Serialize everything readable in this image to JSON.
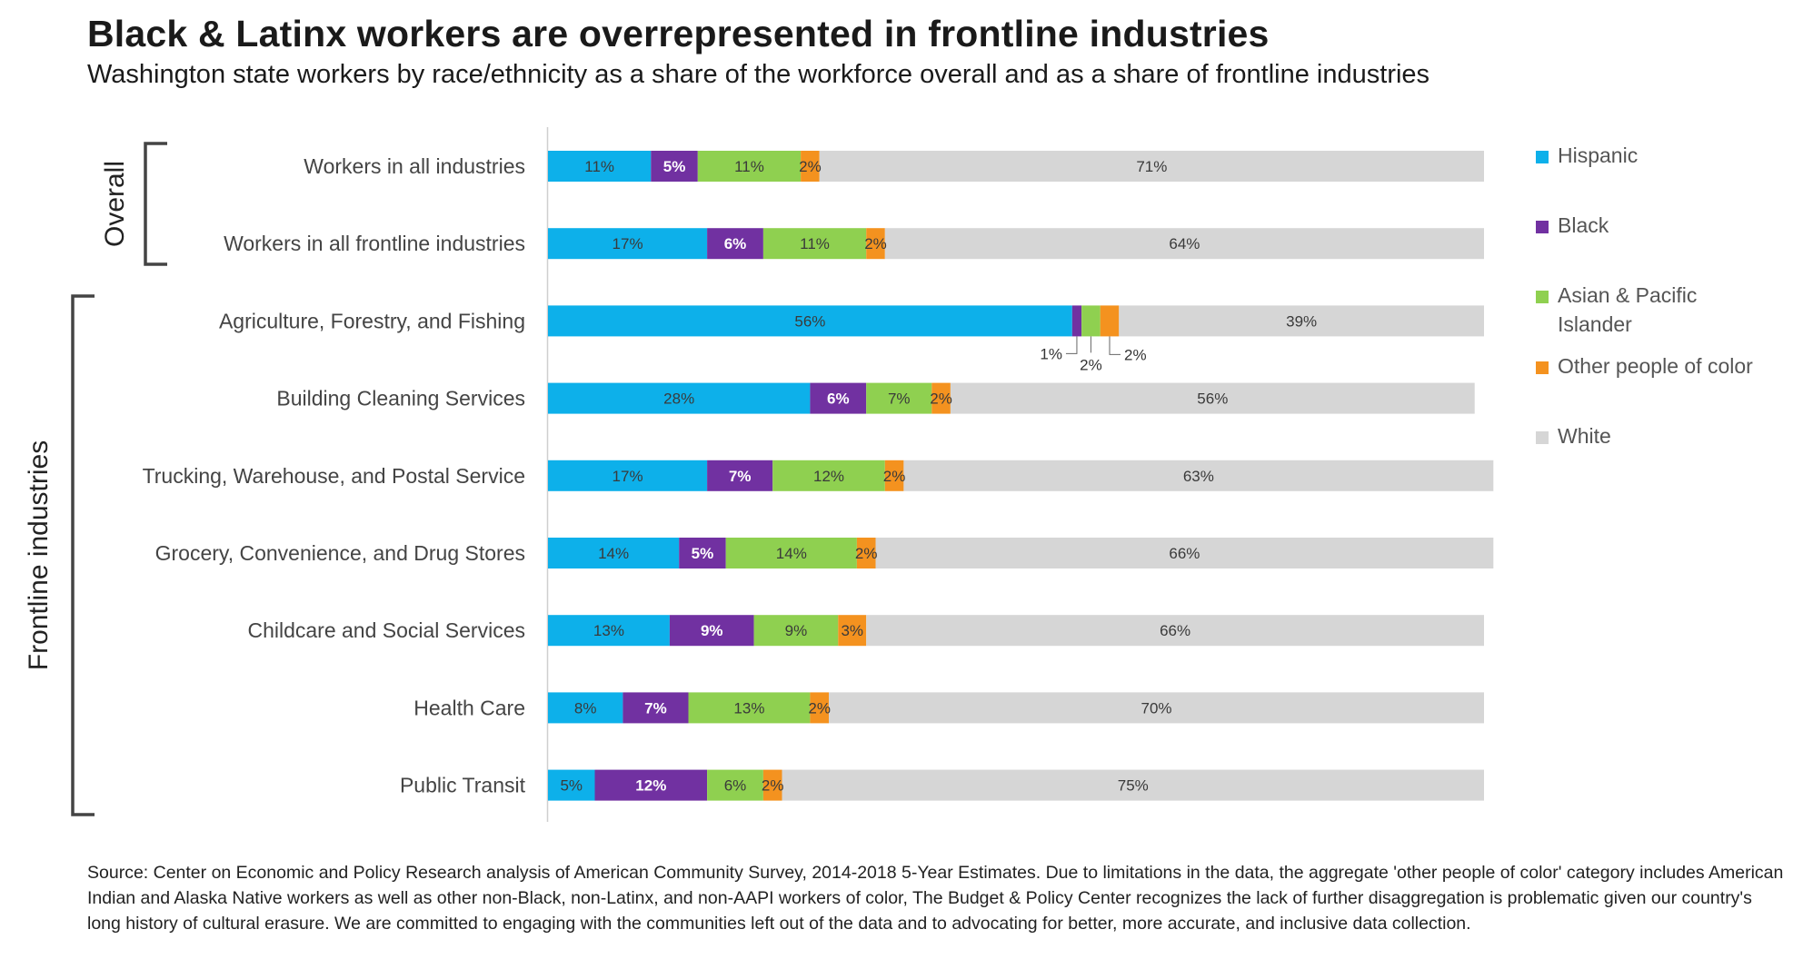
{
  "title": "Black & Latinx workers are overrepresented in frontline industries",
  "subtitle": "Washington state workers by race/ethnicity as a share of the workforce overall and as a share of frontline industries",
  "source": "Source: Center on Economic and Policy Research analysis of American Community Survey, 2014-2018 5-Year Estimates. Due to limitations in the data, the aggregate 'other people of color' category includes American Indian and Alaska Native workers as well as other non-Black, non-Latinx, and non-AAPI workers of color, The Budget & Policy Center recognizes the lack of further disaggregation is problematic given our country's long history of cultural erasure. We are committed to engaging with the communities left out of the data and to advocating for better, more accurate, and inclusive data collection.",
  "groups": [
    {
      "label": "Overall",
      "rows": [
        0,
        1
      ]
    },
    {
      "label": "Frontline industries",
      "rows": [
        2,
        3,
        4,
        5,
        6,
        7,
        8
      ]
    }
  ],
  "colors": {
    "Hispanic": "#0db0ea",
    "Black": "#7131a1",
    "Asian & Pacific Islander": "#8fd050",
    "Other people of color": "#f4921f",
    "White": "#d6d6d6"
  },
  "chart_data": {
    "type": "bar",
    "orientation": "horizontal",
    "stacked": true,
    "xlim": [
      0,
      100
    ],
    "unit": "%",
    "categories": [
      "Workers in all industries",
      "Workers in all frontline industries",
      "Agriculture, Forestry, and Fishing",
      "Building Cleaning Services",
      "Trucking, Warehouse, and Postal Service",
      "Grocery, Convenience, and Drug Stores",
      "Childcare and Social Services",
      "Health Care",
      "Public Transit"
    ],
    "series": [
      {
        "name": "Hispanic",
        "values": [
          11,
          17,
          56,
          28,
          17,
          14,
          13,
          8,
          5
        ]
      },
      {
        "name": "Black",
        "values": [
          5,
          6,
          1,
          6,
          7,
          5,
          9,
          7,
          12
        ]
      },
      {
        "name": "Asian & Pacific Islander",
        "values": [
          11,
          11,
          2,
          7,
          12,
          14,
          9,
          13,
          6
        ]
      },
      {
        "name": "Other people of color",
        "values": [
          2,
          2,
          2,
          2,
          2,
          2,
          3,
          2,
          2
        ]
      },
      {
        "name": "White",
        "values": [
          71,
          64,
          39,
          56,
          63,
          66,
          66,
          70,
          75
        ]
      }
    ],
    "legend": {
      "position": "right",
      "entries": [
        "Hispanic",
        "Black",
        "Asian & Pacific\nIslander",
        "Other people of color",
        "White"
      ]
    },
    "callout_labels": [
      {
        "row": 2,
        "series": "Black",
        "text": "1%"
      },
      {
        "row": 2,
        "series": "Asian & Pacific Islander",
        "text": "2%"
      },
      {
        "row": 2,
        "series": "Other people of color",
        "text": "2%"
      }
    ],
    "grid": false
  }
}
